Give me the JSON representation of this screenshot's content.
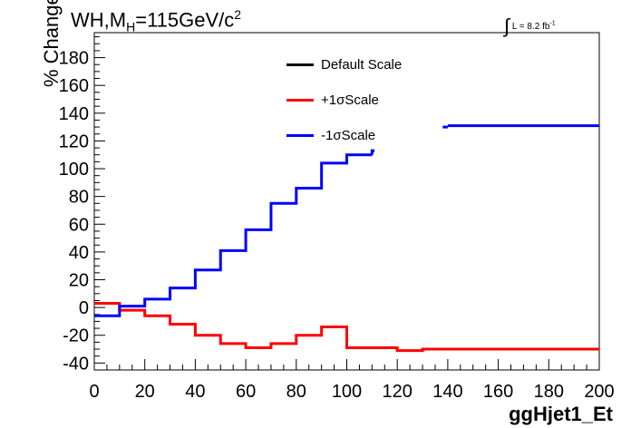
{
  "title": {
    "main_prefix": "WH,M",
    "main_sub": "H",
    "main_suffix": "=115GeV/c",
    "main_sup": "2",
    "lumi_prefix": "L = 8.2 fb",
    "lumi_sup": "-1"
  },
  "axes": {
    "ylabel": "% Change",
    "xlabel": "ggHjet1_Et"
  },
  "legend": [
    {
      "label": "Default Scale",
      "color": "#000000"
    },
    {
      "label": "+1σScale",
      "color": "#ff0000"
    },
    {
      "label": "-1σScale",
      "color": "#0000ff"
    }
  ],
  "chart_data": {
    "type": "line",
    "step": true,
    "xlim": [
      0,
      200
    ],
    "ylim": [
      -45,
      198
    ],
    "xticks": [
      0,
      20,
      40,
      60,
      80,
      100,
      120,
      140,
      160,
      180,
      200
    ],
    "yticks": [
      -40,
      -20,
      0,
      20,
      40,
      60,
      80,
      100,
      120,
      140,
      160,
      180
    ],
    "bin_edges": [
      0,
      10,
      20,
      30,
      40,
      50,
      60,
      70,
      80,
      90,
      100,
      110,
      120,
      130,
      140,
      150,
      160,
      170,
      180,
      190,
      200
    ],
    "series": [
      {
        "name": "+1σScale",
        "color": "#ff0000",
        "values": [
          3,
          -2,
          -6,
          -12,
          -20,
          -26,
          -29,
          -26,
          -20,
          -14,
          -29,
          -29,
          -31,
          -30,
          -30,
          -30,
          -30,
          -30,
          -30,
          -30
        ]
      },
      {
        "name": "-1σScale",
        "color": "#0000ff",
        "values": [
          -6,
          1,
          6,
          14,
          27,
          41,
          56,
          75,
          86,
          104,
          110,
          null,
          null,
          null,
          131,
          131,
          131,
          131,
          131,
          131
        ],
        "extra_segment": {
          "x": [
            110,
            111
          ],
          "y": 113
        },
        "pre_segment": {
          "x": [
            138,
            140
          ],
          "y": 130
        }
      }
    ]
  }
}
